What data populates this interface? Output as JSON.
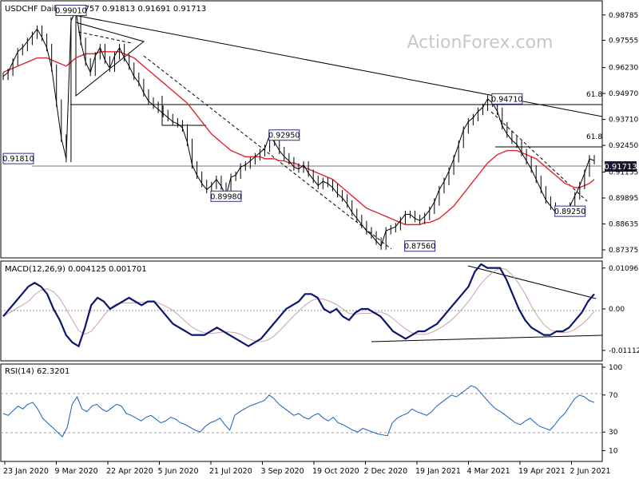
{
  "watermark": "ActionForex.com",
  "price_panel": {
    "title": "USDCHF Daily",
    "ohlc": "0.91757 0.91813 0.91691 0.91713",
    "last_price": "0.91713",
    "callouts": [
      {
        "text": "0.99010",
        "price": 0.9901,
        "date_index": 14
      },
      {
        "text": "0.91810",
        "price": 0.9181,
        "date_index": 0
      },
      {
        "text": "0.92950",
        "price": 0.9295,
        "date_index": 58
      },
      {
        "text": "0.89980",
        "price": 0.8998,
        "date_index": 46
      },
      {
        "text": "0.87560",
        "price": 0.8756,
        "date_index": 86
      },
      {
        "text": "0.94710",
        "price": 0.9471,
        "date_index": 104
      },
      {
        "text": "0.89250",
        "price": 0.8925,
        "date_index": 117
      }
    ],
    "fib_labels": [
      {
        "text": "61.8",
        "price": 0.9471
      },
      {
        "text": "61.8",
        "price": 0.9265
      }
    ]
  },
  "macd_panel": {
    "title": "MACD(12,26,9) 0.004125 0.001701"
  },
  "rsi_panel": {
    "title": "RSI(14) 62.3201"
  },
  "colors": {
    "price_line": "#000000",
    "moving_average": "#e0262f",
    "macd_line": "#0b1470",
    "signal_line": "#c9a2a2",
    "rsi_line": "#1560bd",
    "border": "#000000",
    "callout_border": "#2a2f8f",
    "callout_bg": "#ffffff"
  },
  "chart_data": [
    {
      "type": "line",
      "title": "USDCHF Daily",
      "x_labels": [
        "23 Jan 2020",
        "9 Mar 2020",
        "22 Apr 2020",
        "5 Jun 2020",
        "21 Jul 2020",
        "3 Sep 2020",
        "19 Oct 2020",
        "2 Dec 2020",
        "19 Jan 2021",
        "4 Mar 2021",
        "19 Apr 2021",
        "2 Jun 2021"
      ],
      "y_ticks": [
        0.98785,
        0.97555,
        0.9623,
        0.9497,
        0.9371,
        0.9245,
        0.91155,
        0.89895,
        0.88635,
        0.87375
      ],
      "ylim": [
        0.8718,
        0.9928
      ],
      "series": [
        {
          "name": "USDCHF",
          "values": [
            0.958,
            0.96,
            0.965,
            0.97,
            0.972,
            0.975,
            0.978,
            0.981,
            0.977,
            0.972,
            0.962,
            0.945,
            0.928,
            0.9181,
            0.985,
            0.9901,
            0.975,
            0.965,
            0.96,
            0.968,
            0.972,
            0.966,
            0.962,
            0.968,
            0.972,
            0.967,
            0.963,
            0.958,
            0.955,
            0.95,
            0.946,
            0.944,
            0.942,
            0.94,
            0.938,
            0.936,
            0.935,
            0.933,
            0.926,
            0.915,
            0.91,
            0.906,
            0.903,
            0.905,
            0.908,
            0.9047,
            0.8998,
            0.909,
            0.91,
            0.914,
            0.915,
            0.917,
            0.919,
            0.921,
            0.923,
            0.9295,
            0.926,
            0.922,
            0.919,
            0.917,
            0.914,
            0.913,
            0.915,
            0.911,
            0.908,
            0.905,
            0.907,
            0.906,
            0.904,
            0.901,
            0.899,
            0.896,
            0.892,
            0.889,
            0.886,
            0.883,
            0.881,
            0.878,
            0.8756,
            0.883,
            0.884,
            0.885,
            0.888,
            0.891,
            0.891,
            0.889,
            0.888,
            0.89,
            0.893,
            0.897,
            0.903,
            0.907,
            0.912,
            0.918,
            0.925,
            0.932,
            0.936,
            0.938,
            0.941,
            0.943,
            0.9471,
            0.945,
            0.941,
            0.934,
            0.93,
            0.927,
            0.925,
            0.921,
            0.917,
            0.913,
            0.908,
            0.903,
            0.898,
            0.895,
            0.892,
            0.8925,
            0.893,
            0.895,
            0.9,
            0.905,
            0.911,
            0.918,
            0.9171
          ],
          "moving_average": [
            0.96,
            0.961,
            0.962,
            0.963,
            0.964,
            0.965,
            0.966,
            0.967,
            0.967,
            0.967,
            0.966,
            0.965,
            0.964,
            0.963,
            0.965,
            0.967,
            0.968,
            0.969,
            0.969,
            0.969,
            0.97,
            0.97,
            0.97,
            0.97,
            0.97,
            0.969,
            0.968,
            0.967,
            0.965,
            0.963,
            0.961,
            0.959,
            0.957,
            0.955,
            0.953,
            0.951,
            0.949,
            0.947,
            0.945,
            0.942,
            0.939,
            0.936,
            0.933,
            0.93,
            0.928,
            0.926,
            0.924,
            0.922,
            0.921,
            0.92,
            0.919,
            0.919,
            0.919,
            0.919,
            0.918,
            0.918,
            0.918,
            0.917,
            0.917,
            0.916,
            0.916,
            0.915,
            0.914,
            0.913,
            0.912,
            0.911,
            0.91,
            0.909,
            0.908,
            0.906,
            0.904,
            0.902,
            0.9,
            0.898,
            0.896,
            0.894,
            0.893,
            0.892,
            0.891,
            0.89,
            0.889,
            0.888,
            0.887,
            0.886,
            0.886,
            0.886,
            0.886,
            0.887,
            0.887,
            0.888,
            0.889,
            0.891,
            0.893,
            0.895,
            0.898,
            0.901,
            0.904,
            0.907,
            0.91,
            0.913,
            0.916,
            0.918,
            0.92,
            0.921,
            0.922,
            0.922,
            0.922,
            0.921,
            0.92,
            0.919,
            0.918,
            0.916,
            0.914,
            0.912,
            0.91,
            0.908,
            0.906,
            0.905,
            0.904,
            0.904,
            0.905,
            0.906,
            0.908
          ]
        }
      ]
    },
    {
      "type": "line",
      "title": "MACD(12,26,9)",
      "y_ticks": [
        0.010967,
        0.0,
        -0.011127
      ],
      "ylim": [
        -0.0135,
        0.0122
      ],
      "series": [
        {
          "name": "MACD",
          "values": [
            -0.002,
            0.0,
            0.002,
            0.004,
            0.006,
            0.007,
            0.006,
            0.004,
            0.0,
            -0.003,
            -0.007,
            -0.009,
            -0.01,
            -0.005,
            0.001,
            0.003,
            0.002,
            0.0,
            0.001,
            0.002,
            0.003,
            0.002,
            0.001,
            0.002,
            0.002,
            0.0,
            -0.002,
            -0.004,
            -0.005,
            -0.006,
            -0.007,
            -0.007,
            -0.007,
            -0.006,
            -0.005,
            -0.006,
            -0.007,
            -0.008,
            -0.009,
            -0.01,
            -0.009,
            -0.008,
            -0.006,
            -0.004,
            -0.002,
            0.0,
            0.001,
            0.002,
            0.004,
            0.004,
            0.003,
            0.0,
            -0.001,
            0.0,
            -0.002,
            -0.003,
            -0.001,
            0.0,
            0.0,
            -0.001,
            -0.002,
            -0.004,
            -0.006,
            -0.007,
            -0.008,
            -0.007,
            -0.006,
            -0.006,
            -0.005,
            -0.004,
            -0.002,
            0.0,
            0.002,
            0.004,
            0.006,
            0.01,
            0.012,
            0.011,
            0.011,
            0.011,
            0.008,
            0.004,
            0.0,
            -0.003,
            -0.005,
            -0.006,
            -0.007,
            -0.007,
            -0.006,
            -0.006,
            -0.005,
            -0.003,
            -0.001,
            0.002,
            0.004
          ],
          "note_points": 0
        },
        {
          "name": "Signal",
          "values": []
        }
      ]
    },
    {
      "type": "line",
      "title": "RSI(14)",
      "y_ticks": [
        100,
        70,
        30,
        0
      ],
      "ylim": [
        0,
        100
      ],
      "series": [
        {
          "name": "RSI",
          "values": [
            50,
            48,
            53,
            58,
            55,
            60,
            62,
            55,
            45,
            40,
            35,
            30,
            25,
            35,
            60,
            68,
            55,
            52,
            58,
            60,
            55,
            52,
            56,
            60,
            58,
            50,
            48,
            45,
            42,
            46,
            48,
            44,
            40,
            42,
            46,
            44,
            40,
            38,
            35,
            32,
            30,
            36,
            40,
            42,
            45,
            38,
            32,
            48,
            52,
            55,
            58,
            60,
            62,
            64,
            70,
            66,
            60,
            56,
            52,
            48,
            50,
            46,
            44,
            48,
            50,
            45,
            42,
            46,
            40,
            38,
            35,
            32,
            30,
            34,
            32,
            30,
            28,
            27,
            26,
            40,
            45,
            48,
            50,
            55,
            52,
            50,
            48,
            52,
            58,
            62,
            66,
            70,
            68,
            72,
            76,
            80,
            78,
            72,
            66,
            60,
            55,
            52,
            48,
            44,
            40,
            38,
            42,
            45,
            40,
            36,
            34,
            32,
            38,
            45,
            50,
            58,
            66,
            70,
            68,
            64,
            62
          ]
        }
      ]
    }
  ]
}
